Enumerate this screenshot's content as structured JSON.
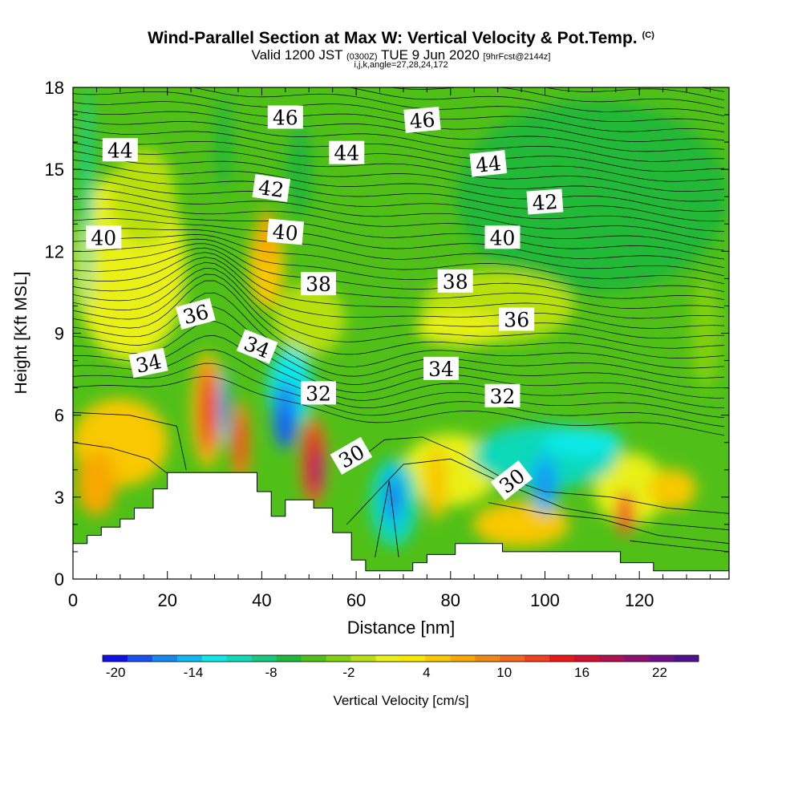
{
  "title": "Wind-Parallel Section at Max W: Vertical Velocity & Pot.Temp.",
  "title_mark": "(C)",
  "subtitle": {
    "valid": "Valid 1200 JST",
    "utc": "(0300Z)",
    "date": "TUE 9 Jun 2020",
    "forecast": "[9hrFcst@2144z]"
  },
  "grid_info": "i,j,k,angle=27,28,24,172",
  "chart_data": {
    "type": "heatmap",
    "title": "Wind-Parallel Section at Max W: Vertical Velocity & Pot.Temp.",
    "xlabel": "Distance [nm]",
    "ylabel": "Height [Kft MSL]",
    "xlim": [
      0,
      139
    ],
    "ylim": [
      0,
      18
    ],
    "x_ticks": [
      0,
      20,
      40,
      60,
      80,
      100,
      120
    ],
    "y_ticks": [
      0,
      3,
      6,
      9,
      12,
      15,
      18
    ],
    "colorbar": {
      "label": "Vertical Velocity [cm/s]",
      "ticks": [
        -20,
        -14,
        -8,
        -2,
        4,
        10,
        16,
        22
      ],
      "min": -21,
      "max": 25,
      "levels": [
        "#1010e8",
        "#1a50f0",
        "#1888f0",
        "#10b8f0",
        "#10e8e8",
        "#10d8b8",
        "#18c880",
        "#20b838",
        "#50c018",
        "#80d010",
        "#b8e010",
        "#e8f018",
        "#f8e800",
        "#f8c800",
        "#f8a800",
        "#f08818",
        "#f06820",
        "#f04020",
        "#e81818",
        "#d01030",
        "#b01050",
        "#901070",
        "#701088",
        "#501090"
      ]
    },
    "terrain_kft": [
      [
        0,
        1.3
      ],
      [
        3,
        1.3
      ],
      [
        3,
        1.6
      ],
      [
        6,
        1.6
      ],
      [
        6,
        1.9
      ],
      [
        10,
        1.9
      ],
      [
        10,
        2.2
      ],
      [
        13,
        2.2
      ],
      [
        13,
        2.6
      ],
      [
        17,
        2.6
      ],
      [
        17,
        3.3
      ],
      [
        20,
        3.3
      ],
      [
        20,
        3.9
      ],
      [
        39,
        3.9
      ],
      [
        39,
        3.2
      ],
      [
        42,
        3.2
      ],
      [
        42,
        2.3
      ],
      [
        45,
        2.3
      ],
      [
        45,
        2.9
      ],
      [
        51,
        2.9
      ],
      [
        51,
        2.6
      ],
      [
        55,
        2.6
      ],
      [
        55,
        1.7
      ],
      [
        59,
        1.7
      ],
      [
        59,
        0.7
      ],
      [
        62,
        0.7
      ],
      [
        62,
        0.3
      ],
      [
        72,
        0.3
      ],
      [
        72,
        0.6
      ],
      [
        75,
        0.6
      ],
      [
        75,
        0.9
      ],
      [
        81,
        0.9
      ],
      [
        81,
        1.3
      ],
      [
        91,
        1.3
      ],
      [
        91,
        1.0
      ],
      [
        116,
        1.0
      ],
      [
        116,
        0.6
      ],
      [
        123,
        0.6
      ],
      [
        123,
        0.3
      ],
      [
        139,
        0.3
      ]
    ],
    "theta_labels": [
      {
        "text": "44",
        "x": 10,
        "y": 15.7,
        "rot": 0
      },
      {
        "text": "46",
        "x": 45,
        "y": 16.9,
        "rot": 0
      },
      {
        "text": "44",
        "x": 58,
        "y": 15.6,
        "rot": 0
      },
      {
        "text": "46",
        "x": 74,
        "y": 16.8,
        "rot": -5
      },
      {
        "text": "44",
        "x": 88,
        "y": 15.2,
        "rot": -6
      },
      {
        "text": "42",
        "x": 42,
        "y": 14.3,
        "rot": 8
      },
      {
        "text": "42",
        "x": 100,
        "y": 13.8,
        "rot": -4
      },
      {
        "text": "40",
        "x": 6.5,
        "y": 12.5,
        "rot": 0
      },
      {
        "text": "40",
        "x": 45,
        "y": 12.7,
        "rot": 5
      },
      {
        "text": "40",
        "x": 91,
        "y": 12.5,
        "rot": 0
      },
      {
        "text": "38",
        "x": 52,
        "y": 10.8,
        "rot": 0
      },
      {
        "text": "38",
        "x": 81,
        "y": 10.9,
        "rot": 0
      },
      {
        "text": "36",
        "x": 26,
        "y": 9.7,
        "rot": -15
      },
      {
        "text": "36",
        "x": 94,
        "y": 9.5,
        "rot": 0
      },
      {
        "text": "34",
        "x": 16,
        "y": 7.9,
        "rot": -12
      },
      {
        "text": "34",
        "x": 39,
        "y": 8.5,
        "rot": 22
      },
      {
        "text": "34",
        "x": 78,
        "y": 7.7,
        "rot": 0
      },
      {
        "text": "32",
        "x": 52,
        "y": 6.8,
        "rot": 0
      },
      {
        "text": "32",
        "x": 91,
        "y": 6.7,
        "rot": 0
      },
      {
        "text": "30",
        "x": 59,
        "y": 4.5,
        "rot": -30
      },
      {
        "text": "30",
        "x": 93,
        "y": 3.6,
        "rot": -38
      }
    ]
  }
}
